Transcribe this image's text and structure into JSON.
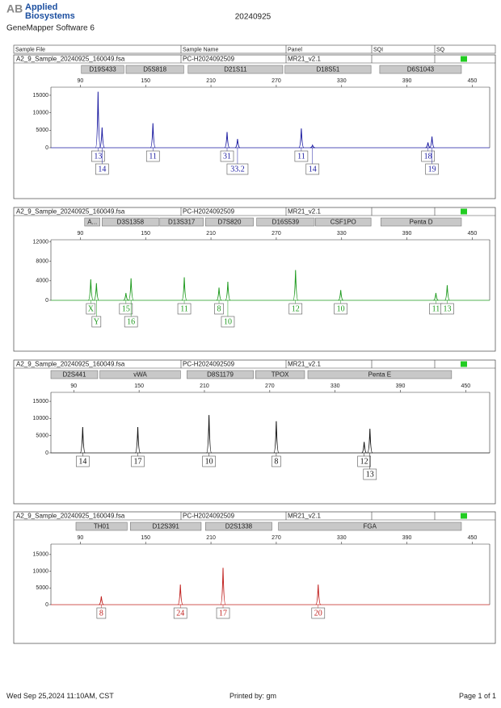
{
  "header": {
    "brand": [
      "Applied",
      "Biosystems"
    ],
    "software": "GeneMapper Software 6",
    "title": "20240925"
  },
  "columns": [
    "Sample File",
    "Sample Name",
    "Panel",
    "SQI",
    "SQ"
  ],
  "panels": [
    {
      "sample_file": "A2_9_Sample_20240925_160049.fsa",
      "sample_name": "PC-H2024092509",
      "panel": "MR21_v2.1",
      "color": "#1a1aa0",
      "xlim": [
        63,
        466
      ],
      "xticks": [
        90,
        150,
        210,
        270,
        330,
        390,
        450
      ],
      "ylim": [
        0,
        17300
      ],
      "yticks": [
        0,
        5000,
        10000,
        15000
      ],
      "markers": [
        {
          "name": "D19S433",
          "start": 91,
          "end": 130
        },
        {
          "name": "D5S818",
          "start": 132,
          "end": 185
        },
        {
          "name": "D21S11",
          "start": 189,
          "end": 276
        },
        {
          "name": "D18S51",
          "start": 278,
          "end": 357
        },
        {
          "name": "D6S1043",
          "start": 365,
          "end": 440
        }
      ],
      "peaks": [
        {
          "x": 106.3,
          "height": 16000,
          "label": "13"
        },
        {
          "x": 110,
          "height": 5800,
          "label": "14"
        },
        {
          "x": 156.7,
          "height": 7000,
          "label": "11"
        },
        {
          "x": 224.8,
          "height": 4500,
          "label": "31"
        },
        {
          "x": 234.4,
          "height": 2500,
          "label": "33.2"
        },
        {
          "x": 293,
          "height": 5500,
          "label": "11"
        },
        {
          "x": 303.3,
          "height": 700,
          "label": "14"
        },
        {
          "x": 409.3,
          "height": 1500,
          "label": "18"
        },
        {
          "x": 413,
          "height": 3200,
          "label": "19"
        }
      ]
    },
    {
      "sample_file": "A2_9_Sample_20240925_160049.fsa",
      "sample_name": "PC-H2024092509",
      "panel": "MR21_v2.1",
      "color": "#1e9a1e",
      "xlim": [
        63,
        466
      ],
      "xticks": [
        90,
        150,
        210,
        270,
        330,
        390,
        450
      ],
      "ylim": [
        0,
        12400
      ],
      "yticks": [
        0,
        4000,
        8000,
        12000
      ],
      "markers": [
        {
          "name": "A...",
          "start": 94,
          "end": 108
        },
        {
          "name": "D3S1358",
          "start": 110,
          "end": 162
        },
        {
          "name": "D13S317",
          "start": 163,
          "end": 203
        },
        {
          "name": "D7S820",
          "start": 205,
          "end": 249
        },
        {
          "name": "D16S539",
          "start": 252,
          "end": 305
        },
        {
          "name": "CSF1PO",
          "start": 306,
          "end": 357
        },
        {
          "name": "Penta D",
          "start": 366,
          "end": 440
        }
      ],
      "peaks": [
        {
          "x": 99.6,
          "height": 4300,
          "label": "X"
        },
        {
          "x": 104.8,
          "height": 3500,
          "label": "Y"
        },
        {
          "x": 131.9,
          "height": 1500,
          "label": "15"
        },
        {
          "x": 136.6,
          "height": 4500,
          "label": "16"
        },
        {
          "x": 185.5,
          "height": 4700,
          "label": "11"
        },
        {
          "x": 217.4,
          "height": 2600,
          "label": "8"
        },
        {
          "x": 225.5,
          "height": 3800,
          "label": "10"
        },
        {
          "x": 287.7,
          "height": 6200,
          "label": "12"
        },
        {
          "x": 329.2,
          "height": 2100,
          "label": "10"
        },
        {
          "x": 416.6,
          "height": 1500,
          "label": "11"
        },
        {
          "x": 427,
          "height": 3100,
          "label": "13"
        }
      ]
    },
    {
      "sample_file": "A2_9_Sample_20240925_160049.fsa",
      "sample_name": "PC-H2024092509",
      "panel": "MR21_v2.1",
      "color": "#111111",
      "xlim": [
        69,
        472
      ],
      "xticks": [
        90,
        150,
        210,
        270,
        330,
        390,
        450
      ],
      "ylim": [
        0,
        17600
      ],
      "yticks": [
        0,
        5000,
        10000,
        15000
      ],
      "markers": [
        {
          "name": "D2S441",
          "start": 69,
          "end": 112
        },
        {
          "name": "vWA",
          "start": 114,
          "end": 188
        },
        {
          "name": "D8S1179",
          "start": 194,
          "end": 255
        },
        {
          "name": "TPOX",
          "start": 257,
          "end": 302
        },
        {
          "name": "Penta E",
          "start": 305,
          "end": 437
        }
      ],
      "peaks": [
        {
          "x": 98.2,
          "height": 7500,
          "label": "14"
        },
        {
          "x": 148.8,
          "height": 7500,
          "label": "17"
        },
        {
          "x": 214.2,
          "height": 11000,
          "label": "10"
        },
        {
          "x": 276,
          "height": 9200,
          "label": "8"
        },
        {
          "x": 356.7,
          "height": 3200,
          "label": "12"
        },
        {
          "x": 362,
          "height": 7000,
          "label": "13"
        }
      ]
    },
    {
      "sample_file": "A2_9_Sample_20240925_160049.fsa",
      "sample_name": "PC-H2024092509",
      "panel": "MR21_v2.1",
      "color": "#c0201e",
      "xlim": [
        63,
        466
      ],
      "xticks": [
        90,
        150,
        210,
        270,
        330,
        390,
        450
      ],
      "ylim": [
        0,
        18100
      ],
      "yticks": [
        0,
        5000,
        10000,
        15000
      ],
      "markers": [
        {
          "name": "TH01",
          "start": 86,
          "end": 133
        },
        {
          "name": "D12S391",
          "start": 136,
          "end": 201
        },
        {
          "name": "D2S1338",
          "start": 205,
          "end": 266
        },
        {
          "name": "FGA",
          "start": 272,
          "end": 440
        }
      ],
      "peaks": [
        {
          "x": 109.3,
          "height": 2500,
          "label": "8"
        },
        {
          "x": 181.9,
          "height": 6000,
          "label": "24"
        },
        {
          "x": 221.1,
          "height": 11000,
          "label": "17"
        },
        {
          "x": 308.5,
          "height": 6000,
          "label": "20"
        }
      ]
    }
  ],
  "footer": {
    "date": "Wed Sep 25,2024 11:10AM, CST",
    "printed_by": "Printed by: gm",
    "page": "Page 1 of 1"
  }
}
